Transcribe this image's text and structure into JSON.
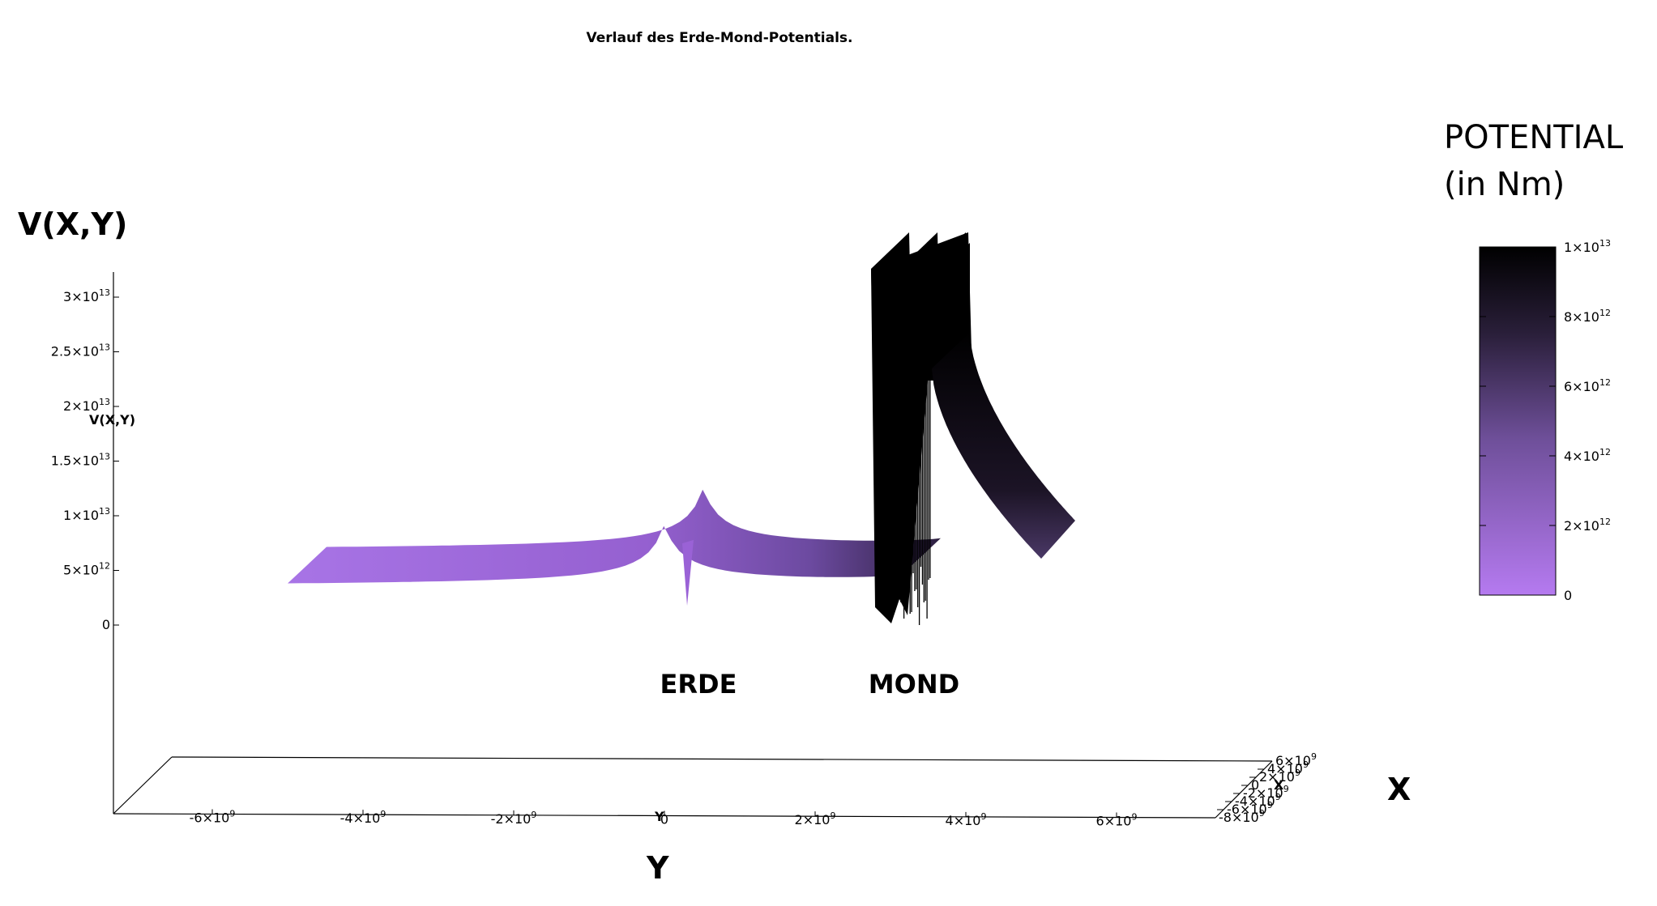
{
  "chart_data": {
    "type": "surface",
    "title": "Verlauf des Erde-Mond-Potentials.",
    "zlabel_small": "V(X,Y)",
    "zlabel_big": "V(X,Y)",
    "xlabel_big": "X",
    "ylabel_big": "Y",
    "ylabel_small": "Y",
    "xlabel_small": "X",
    "annotations": [
      {
        "text": "ERDE",
        "y": 0,
        "x": 0
      },
      {
        "text": "MOND",
        "y": 3840000000.0,
        "x": 0
      }
    ],
    "z_ticks": [
      {
        "value": 0,
        "base": "0",
        "exp": ""
      },
      {
        "value": 5000000000000.0,
        "base": "5×10",
        "exp": "12"
      },
      {
        "value": 10000000000000.0,
        "base": "1×10",
        "exp": "13"
      },
      {
        "value": 15000000000000.0,
        "base": "1.5×10",
        "exp": "13"
      },
      {
        "value": 20000000000000.0,
        "base": "2×10",
        "exp": "13"
      },
      {
        "value": 25000000000000.0,
        "base": "2.5×10",
        "exp": "13"
      },
      {
        "value": 30000000000000.0,
        "base": "3×10",
        "exp": "13"
      }
    ],
    "y_ticks": [
      {
        "value": -6000000000.0,
        "base": "-6×10",
        "exp": "9"
      },
      {
        "value": -4000000000.0,
        "base": "-4×10",
        "exp": "9"
      },
      {
        "value": -2000000000.0,
        "base": "-2×10",
        "exp": "9"
      },
      {
        "value": 0,
        "base": "0",
        "exp": ""
      },
      {
        "value": 2000000000.0,
        "base": "2×10",
        "exp": "9"
      },
      {
        "value": 4000000000.0,
        "base": "4×10",
        "exp": "9"
      },
      {
        "value": 6000000000.0,
        "base": "6×10",
        "exp": "9"
      }
    ],
    "x_ticks": [
      {
        "value": -8000000000.0,
        "base": "-8×10",
        "exp": "9"
      },
      {
        "value": -6000000000.0,
        "base": "-6×10",
        "exp": "9"
      },
      {
        "value": -4000000000.0,
        "base": "-4×10",
        "exp": "9"
      },
      {
        "value": -2000000000.0,
        "base": "-2×10",
        "exp": "9"
      },
      {
        "value": 0,
        "base": "0",
        "exp": ""
      },
      {
        "value": 2000000000.0,
        "base": "2×10",
        "exp": "9"
      },
      {
        "value": 4000000000.0,
        "base": "4×10",
        "exp": "9"
      },
      {
        "value": 6000000000.0,
        "base": "6×10",
        "exp": "9"
      }
    ],
    "y_range": [
      -7300000000.0,
      7300000000.0
    ],
    "z_range": [
      0,
      33000000000000.0
    ],
    "surface": {
      "earth_y": 0,
      "moon_y": 3840000000.0,
      "z_far": 2000000000000.0,
      "z_peak_clip": 30000000000000.0,
      "y_start": -5000000000.0,
      "y_end": 6500000000.0
    },
    "colorbox": {
      "title_line1": "POTENTIAL",
      "title_line2": "(in Nm)",
      "range": [
        0,
        10000000000000.0
      ],
      "color_low": "#b57af0",
      "color_mid": "#4a3866",
      "color_high": "#000000",
      "ticks": [
        {
          "value": 0,
          "base": "0",
          "exp": ""
        },
        {
          "value": 2000000000000.0,
          "base": "2×10",
          "exp": "12"
        },
        {
          "value": 4000000000000.0,
          "base": "4×10",
          "exp": "12"
        },
        {
          "value": 6000000000000.0,
          "base": "6×10",
          "exp": "12"
        },
        {
          "value": 8000000000000.0,
          "base": "8×10",
          "exp": "12"
        },
        {
          "value": 10000000000000.0,
          "base": "1×10",
          "exp": "13"
        }
      ]
    },
    "grid": false
  }
}
